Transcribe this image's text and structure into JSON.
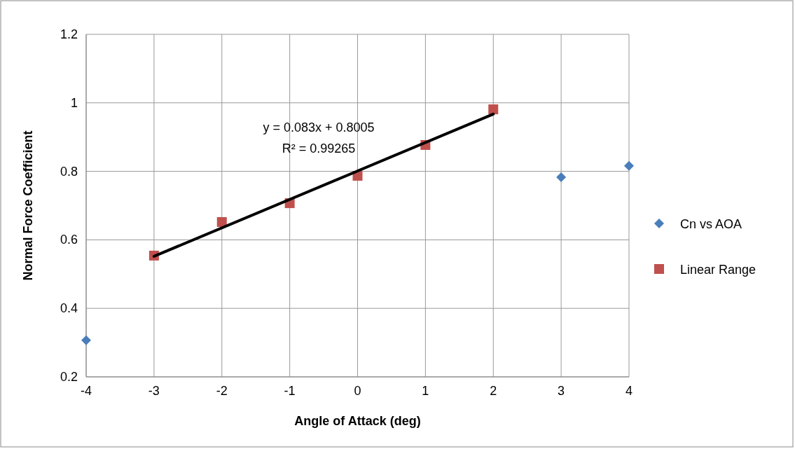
{
  "chart_data": {
    "type": "scatter",
    "xlabel": "Angle of Attack (deg)",
    "ylabel": "Normal Force Coefficient",
    "x": [
      -4,
      -3,
      -2,
      -1,
      0,
      1,
      2,
      3,
      4
    ],
    "series": [
      {
        "name": "Cn vs AOA",
        "color": "#4a7ebb",
        "marker": "diamond",
        "values": [
          0.307,
          null,
          null,
          null,
          null,
          null,
          null,
          0.783,
          0.816
        ]
      },
      {
        "name": "Linear Range",
        "color": "#c0504d",
        "marker": "square",
        "values": [
          null,
          0.554,
          0.652,
          0.707,
          0.787,
          0.877,
          0.981,
          null,
          null
        ]
      },
      {
        "type": "line",
        "color": "#000000",
        "x": [
          -3,
          2
        ],
        "values": [
          0.552,
          0.967
        ]
      }
    ],
    "xlim": [
      -4,
      4
    ],
    "xticks": [
      -4,
      -3,
      -2,
      -1,
      0,
      1,
      2,
      3,
      4
    ],
    "ylim": [
      0.2,
      1.2
    ],
    "yticks": [
      0.2,
      0.4,
      0.6,
      0.8,
      1,
      1.2
    ],
    "grid": true,
    "legend": "right",
    "annotations": [
      "y = 0.083x + 0.8005",
      "R² = 0.99265"
    ]
  }
}
